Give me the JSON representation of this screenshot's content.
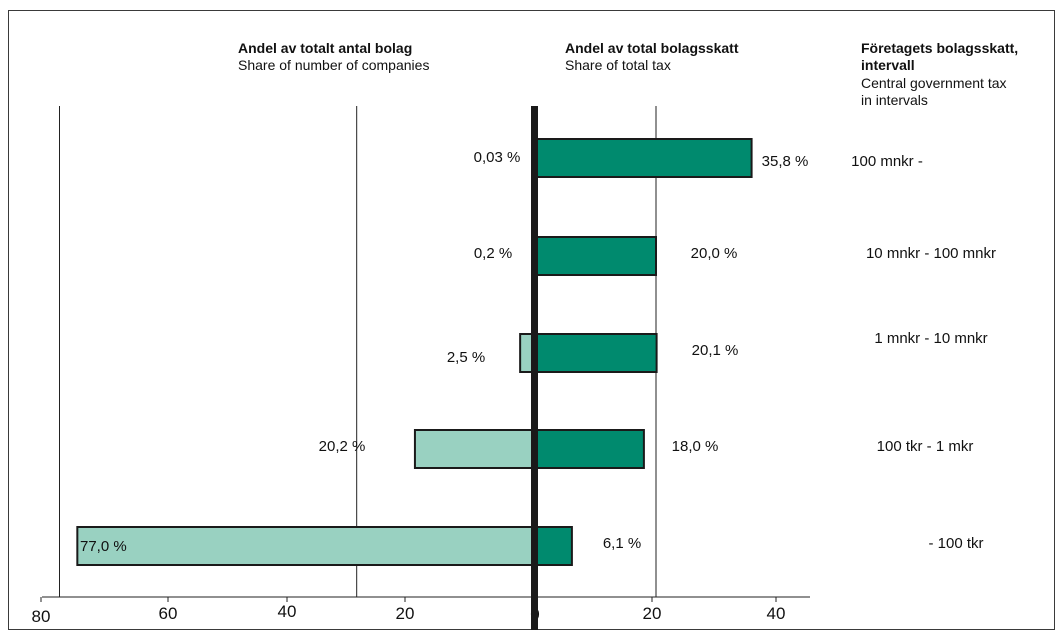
{
  "chart_data": {
    "type": "bar",
    "orientation": "horizontal-diverging",
    "categories": [
      "100 mnkr -",
      "10 mnkr - 100 mnkr",
      "1 mnkr - 10 mnkr",
      "100 tkr - 1 mkr",
      "- 100 tkr"
    ],
    "series": [
      {
        "name": "Andel av totalt antal bolag",
        "subtitle": "Share of number of companies",
        "side": "left",
        "color": "#99d1c1",
        "values": [
          0.03,
          0.2,
          2.5,
          20.2,
          77.0
        ],
        "labels": [
          "0,03 %",
          "0,2 %",
          "2,5 %",
          "20,2 %",
          "77,0 %"
        ]
      },
      {
        "name": "Andel av total bolagsskatt",
        "subtitle": "Share of total tax",
        "side": "right",
        "color": "#008a6e",
        "values": [
          35.8,
          20.0,
          20.1,
          18.0,
          6.1
        ],
        "labels": [
          "35,8 %",
          "20,0 %",
          "20,1 %",
          "18,0 %",
          "6,1 %"
        ]
      }
    ],
    "category_header": {
      "title": "Företagets bolagsskatt, intervall",
      "title_line1": "Företagets bolagsskatt,",
      "title_line2": "intervall",
      "subtitle_line1": "Central government tax",
      "subtitle_line2": "in intervals"
    },
    "left_ticks": [
      "80",
      "60",
      "40",
      "20",
      "0"
    ],
    "right_ticks": [
      "20",
      "40"
    ],
    "xlim_left": [
      0,
      80
    ],
    "xlim_right": [
      0,
      45
    ],
    "grid": true,
    "bar_outline_color": "#1a1a1a"
  }
}
